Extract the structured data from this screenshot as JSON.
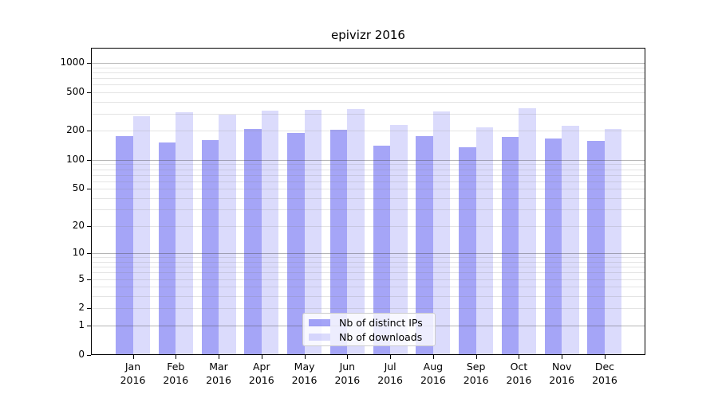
{
  "title": "epivizr 2016",
  "chart_data": {
    "type": "bar",
    "title": "epivizr 2016",
    "scale": "log1p",
    "categories": [
      "Jan",
      "Feb",
      "Mar",
      "Apr",
      "May",
      "Jun",
      "Jul",
      "Aug",
      "Sep",
      "Oct",
      "Nov",
      "Dec"
    ],
    "year_label": "2016",
    "series": [
      {
        "name": "Nb of distinct IPs",
        "color": "rgba(40,40,235,0.42)",
        "values": [
          175,
          153,
          161,
          209,
          191,
          205,
          140,
          176,
          135,
          174,
          166,
          156
        ]
      },
      {
        "name": "Nb of downloads",
        "color": "rgba(40,40,235,0.17)",
        "values": [
          285,
          311,
          296,
          324,
          332,
          335,
          228,
          317,
          217,
          340,
          224,
          210
        ]
      }
    ],
    "yticks": [
      0,
      1,
      2,
      5,
      10,
      20,
      50,
      100,
      200,
      500,
      1000
    ],
    "ylim": [
      0,
      1440
    ],
    "xlabel": "",
    "ylabel": "",
    "grid": "major+minor",
    "grid_major_color": "rgba(70,70,70,0.40)",
    "grid_minor_color": "rgba(130,130,130,0.22)",
    "legend_position": "bottom-center-inside"
  }
}
